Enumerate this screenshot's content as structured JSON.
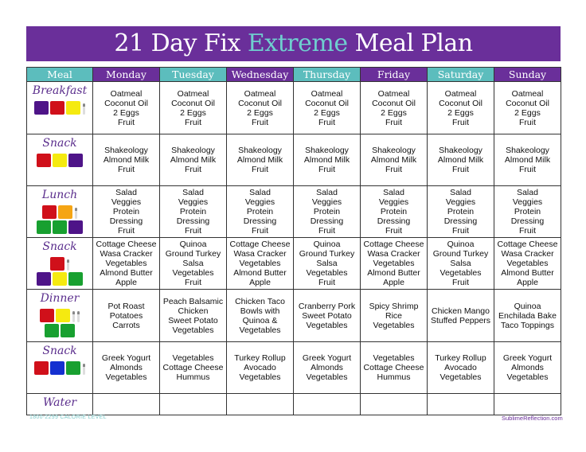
{
  "title": {
    "part1": "21 Day Fix ",
    "accent": "Extreme",
    "part2": " Meal Plan"
  },
  "colors": {
    "purple": "#6a2f9a",
    "teal": "#5cbdbd",
    "red": "#d0101a",
    "yellow": "#f5ea10",
    "orange": "#f5a514",
    "green": "#18a030",
    "blue": "#1530d0",
    "violet": "#4e1488"
  },
  "headers": [
    "Meal",
    "Monday",
    "Tuesday",
    "Wednesday",
    "Thursday",
    "Friday",
    "Saturday",
    "Sunday"
  ],
  "rows": [
    {
      "meal": "Breakfast",
      "blocks": [
        [
          "violet",
          "red",
          "yellow",
          "spoon"
        ]
      ],
      "cells": [
        [
          "Oatmeal",
          "Coconut Oil",
          "2 Eggs",
          "Fruit"
        ],
        [
          "Oatmeal",
          "Coconut Oil",
          "2 Eggs",
          "Fruit"
        ],
        [
          "Oatmeal",
          "Coconut Oil",
          "2 Eggs",
          "Fruit"
        ],
        [
          "Oatmeal",
          "Coconut Oil",
          "2 Eggs",
          "Fruit"
        ],
        [
          "Oatmeal",
          "Coconut Oil",
          "2 Eggs",
          "Fruit"
        ],
        [
          "Oatmeal",
          "Coconut Oil",
          "2 Eggs",
          "Fruit"
        ],
        [
          "Oatmeal",
          "Coconut Oil",
          "2 Eggs",
          "Fruit"
        ]
      ]
    },
    {
      "meal": "Snack",
      "blocks": [
        [
          "red",
          "yellow",
          "violet"
        ]
      ],
      "cells": [
        [
          "Shakeology",
          "Almond Milk",
          "Fruit"
        ],
        [
          "Shakeology",
          "Almond Milk",
          "Fruit"
        ],
        [
          "Shakeology",
          "Almond Milk",
          "Fruit"
        ],
        [
          "Shakeology",
          "Almond Milk",
          "Fruit"
        ],
        [
          "Shakeology",
          "Almond Milk",
          "Fruit"
        ],
        [
          "Shakeology",
          "Almond Milk",
          "Fruit"
        ],
        [
          "Shakeology",
          "Almond Milk",
          "Fruit"
        ]
      ]
    },
    {
      "meal": "Lunch",
      "blocks": [
        [
          "red",
          "orange",
          "spoon"
        ],
        [
          "green",
          "green",
          "violet"
        ]
      ],
      "cells": [
        [
          "Salad",
          "Veggies",
          "Protein",
          "Dressing",
          "Fruit"
        ],
        [
          "Salad",
          "Veggies",
          "Protein",
          "Dressing",
          "Fruit"
        ],
        [
          "Salad",
          "Veggies",
          "Protein",
          "Dressing",
          "Fruit"
        ],
        [
          "Salad",
          "Veggies",
          "Protein",
          "Dressing",
          "Fruit"
        ],
        [
          "Salad",
          "Veggies",
          "Protein",
          "Dressing",
          "Fruit"
        ],
        [
          "Salad",
          "Veggies",
          "Protein",
          "Dressing",
          "Fruit"
        ],
        [
          "Salad",
          "Veggies",
          "Protein",
          "Dressing",
          "Fruit"
        ]
      ]
    },
    {
      "meal": "Snack",
      "blocks": [
        [
          "red",
          "spoon"
        ],
        [
          "violet",
          "yellow",
          "green"
        ]
      ],
      "cells": [
        [
          "Cottage Cheese",
          "Wasa Cracker",
          "Vegetables",
          "Almond Butter",
          "Apple"
        ],
        [
          "Quinoa",
          "Ground Turkey",
          "Salsa",
          "Vegetables",
          "Fruit"
        ],
        [
          "Cottage Cheese",
          "Wasa Cracker",
          "Vegetables",
          "Almond Butter",
          "Apple"
        ],
        [
          "Quinoa",
          "Ground Turkey",
          "Salsa",
          "Vegetables",
          "Fruit"
        ],
        [
          "Cottage Cheese",
          "Wasa Cracker",
          "Vegetables",
          "Almond Butter",
          "Apple"
        ],
        [
          "Quinoa",
          "Ground Turkey",
          "Salsa",
          "Vegetables",
          "Fruit"
        ],
        [
          "Cottage Cheese",
          "Wasa Cracker",
          "Vegetables",
          "Almond Butter",
          "Apple"
        ]
      ]
    },
    {
      "meal": "Dinner",
      "blocks": [
        [
          "red",
          "yellow",
          "spoon",
          "spoon"
        ],
        [
          "green",
          "green"
        ]
      ],
      "cells": [
        [
          "Pot Roast",
          "Potatoes",
          "Carrots"
        ],
        [
          "Peach Balsamic",
          "Chicken",
          "Sweet Potato",
          "Vegetables"
        ],
        [
          "Chicken Taco",
          "Bowls with",
          "Quinoa &",
          "Vegetables"
        ],
        [
          "Cranberry Pork",
          "Sweet Potato",
          "Vegetables"
        ],
        [
          "Spicy Shrimp",
          "Rice",
          "Vegetables"
        ],
        [
          "Chicken Mango",
          "Stuffed Peppers"
        ],
        [
          "Quinoa",
          "Enchilada Bake",
          "Taco Toppings"
        ]
      ]
    },
    {
      "meal": "Snack",
      "blocks": [
        [
          "red",
          "blue",
          "green",
          "spoon"
        ]
      ],
      "cells": [
        [
          "Greek Yogurt",
          "Almonds",
          "Vegetables"
        ],
        [
          "Vegetables",
          "Cottage Cheese",
          "Hummus"
        ],
        [
          "Turkey Rollup",
          "Avocado",
          "Vegetables"
        ],
        [
          "Greek Yogurt",
          "Almonds",
          "Vegetables"
        ],
        [
          "Vegetables",
          "Cottage Cheese",
          "Hummus"
        ],
        [
          "Turkey Rollup",
          "Avocado",
          "Vegetables"
        ],
        [
          "Greek Yogurt",
          "Almonds",
          "Vegetables"
        ]
      ]
    },
    {
      "meal": "Water",
      "blocks": [],
      "cells": [
        [],
        [],
        [],
        [],
        [],
        [],
        []
      ]
    }
  ],
  "footer": {
    "calorie_level": "1800-2299 CALORIE LEVEL",
    "site": "SublimeReflection.com"
  }
}
